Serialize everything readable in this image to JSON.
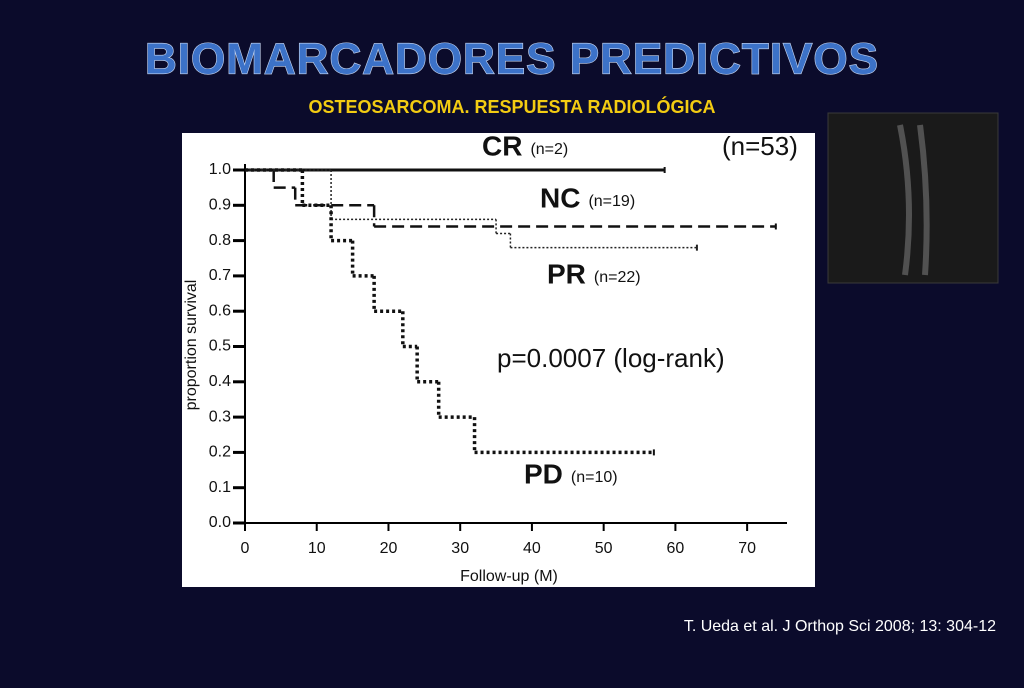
{
  "title": "BIOMARCADORES PREDICTIVOS",
  "subtitle": "OSTEOSARCOMA. RESPUESTA RADIOLÓGICA",
  "citation": "T. Ueda et al. J Orthop Sci 2008; 13: 304-12",
  "chart_data": {
    "type": "step",
    "xlabel": "Follow-up (M)",
    "ylabel": "proportion survival",
    "annotation": "p=0.0007 (log-rank)",
    "total_label": "(n=53)",
    "xlim": [
      0,
      75
    ],
    "ylim": [
      0,
      1.0
    ],
    "xticks": [
      0,
      10,
      20,
      30,
      40,
      50,
      60,
      70
    ],
    "yticks": [
      {
        "value": 0,
        "label": "0.0"
      },
      0.1,
      0.2,
      0.3,
      0.4,
      0.5,
      0.6,
      0.7,
      0.8,
      0.9,
      {
        "value": 1,
        "label": "1.0"
      }
    ],
    "series": [
      {
        "name": "CR",
        "n_label": "(n=2)",
        "color": "#111111",
        "dash": "solid",
        "x": [
          0,
          58.5
        ],
        "values": [
          1.0,
          1.0
        ]
      },
      {
        "name": "NC",
        "n_label": "(n=19)",
        "color": "#111111",
        "dash": "dashed",
        "x": [
          0,
          4,
          7,
          18,
          74
        ],
        "values": [
          1.0,
          0.95,
          0.9,
          0.84,
          0.84
        ]
      },
      {
        "name": "PR",
        "n_label": "(n=22)",
        "color": "#222222",
        "dash": "dotted",
        "x": [
          0,
          12,
          35,
          37,
          63
        ],
        "values": [
          1.0,
          0.86,
          0.82,
          0.78,
          0.78
        ]
      },
      {
        "name": "PD",
        "n_label": "(n=10)",
        "color": "#111111",
        "dash": "dotted-thick",
        "x": [
          0,
          8,
          12,
          15,
          18,
          22,
          24,
          27,
          32,
          57
        ],
        "values": [
          1.0,
          0.9,
          0.8,
          0.7,
          0.6,
          0.5,
          0.4,
          0.3,
          0.2,
          0.2
        ]
      }
    ]
  }
}
